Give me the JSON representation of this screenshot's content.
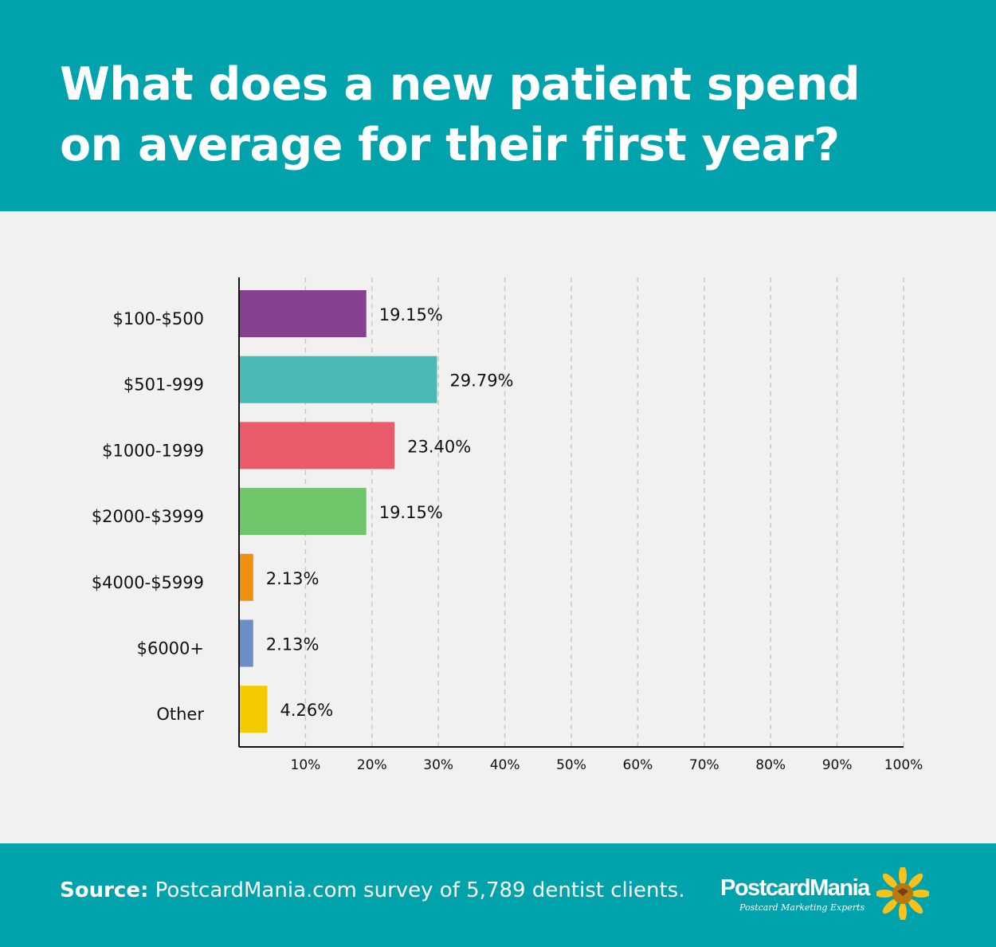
{
  "header": {
    "title": "What does a new patient spend on average for their first year?"
  },
  "chart_data": {
    "type": "bar",
    "orientation": "horizontal",
    "title": "What does a new patient spend on average for their first year?",
    "categories": [
      "$100-$500",
      "$501-999",
      "$1000-1999",
      "$2000-$3999",
      "$4000-$5999",
      "$6000+",
      "Other"
    ],
    "values": [
      19.15,
      29.79,
      23.4,
      19.15,
      2.13,
      2.13,
      4.26
    ],
    "value_labels": [
      "19.15%",
      "29.79%",
      "23.40%",
      "19.15%",
      "2.13%",
      "2.13%",
      "4.26%"
    ],
    "colors": [
      "#85418d",
      "#48b9b5",
      "#ea5a6b",
      "#6fc56a",
      "#f09010",
      "#6a8fc8",
      "#f5cb00"
    ],
    "xlim": [
      0,
      100
    ],
    "xticks": [
      10,
      20,
      30,
      40,
      50,
      60,
      70,
      80,
      90,
      100
    ],
    "xtick_labels": [
      "10%",
      "20%",
      "30%",
      "40%",
      "50%",
      "60%",
      "70%",
      "80%",
      "90%",
      "100%"
    ],
    "grid": "vertical dashed",
    "xlabel": "",
    "ylabel": ""
  },
  "footer": {
    "source_label": "Source:",
    "source_text": " PostcardMania.com survey of 5,789 dentist clients.",
    "logo": {
      "name": "PostcardMania",
      "tagline": "Postcard Marketing Experts"
    }
  },
  "colors": {
    "brand": "#00a3ab",
    "background": "#f1f1f1"
  }
}
